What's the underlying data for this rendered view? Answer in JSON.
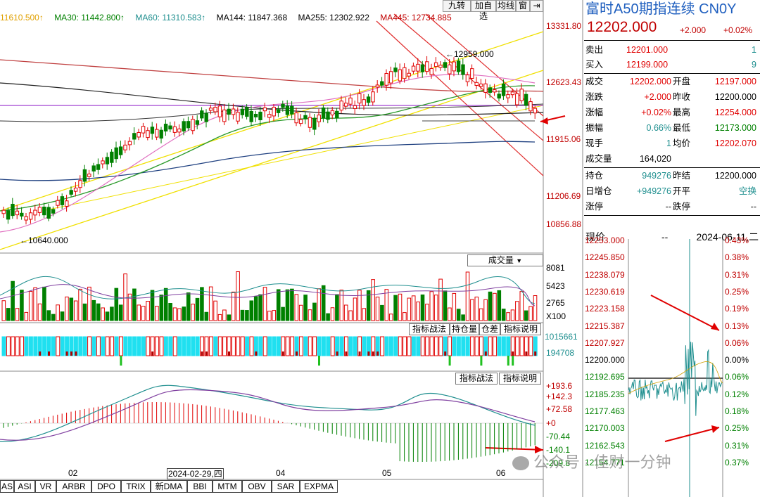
{
  "ma_legend": [
    {
      "text": "11610.500↑",
      "color": "#e0a000"
    },
    {
      "text": "MA30: 11442.800↑",
      "color": "#008000"
    },
    {
      "text": "MA60: 11310.583↑",
      "color": "#1f8f8f"
    },
    {
      "text": "MA144: 11847.368",
      "color": "#000000"
    },
    {
      "text": "MA255: 12302.922",
      "color": "#000000"
    },
    {
      "text": "MA445: 12734.885",
      "color": "#c00000"
    }
  ],
  "toolbar": [
    "九转",
    "加自选",
    "均线",
    "窗"
  ],
  "main_axis": {
    "labels": [
      "13331.80",
      "12623.43",
      "11915.06",
      "11206.69",
      "10856.88"
    ]
  },
  "annotations": {
    "high": "12959.000",
    "low": "10640.000"
  },
  "volume": {
    "dropdown": "成交量",
    "axis": [
      "8081",
      "5423",
      "2765",
      "X100"
    ]
  },
  "position_panel": {
    "buttons": [
      "指标战法",
      "持仓量",
      "仓差",
      "指标说明"
    ],
    "axis": [
      "1015661",
      "194708"
    ]
  },
  "macd": {
    "buttons": [
      "指标战法",
      "指标说明"
    ],
    "axis": [
      "+193.6",
      "+142.3",
      "+72.58",
      "+0",
      "-70.44",
      "-140.1",
      "-209.8"
    ]
  },
  "x_axis": [
    "02",
    "2024-02-29,四",
    "04",
    "05",
    "06"
  ],
  "tabs": [
    "AS",
    "ASI",
    "VR",
    "ARBR",
    "DPO",
    "TRIX",
    "新DMA",
    "BBI",
    "MTM",
    "OBV",
    "SAR",
    "EXPMA"
  ],
  "quote": {
    "title": "富时A50期指连续 CN0Y",
    "price": "12202.000",
    "change": "+2.000",
    "change_pct": "+0.02%",
    "ask_label": "卖出",
    "ask": "12201.000",
    "ask_vol": "1",
    "bid_label": "买入",
    "bid": "12199.000",
    "bid_vol": "9",
    "rows": [
      {
        "l1": "成交",
        "v1": "12202.000",
        "l2": "开盘",
        "v2": "12197.000"
      },
      {
        "l1": "涨跌",
        "v1": "+2.000",
        "l2": "昨收",
        "v2": "12200.000"
      },
      {
        "l1": "涨幅",
        "v1": "+0.02%",
        "l2": "最高",
        "v2": "12254.000"
      },
      {
        "l1": "振幅",
        "v1": "0.66%",
        "l2": "最低",
        "v2": "12173.000"
      },
      {
        "l1": "现手",
        "v1": "1",
        "l2": "均价",
        "v2": "12202.070"
      },
      {
        "l1": "成交量",
        "v1": "164,020",
        "l2": "",
        "v2": ""
      },
      {
        "l1": "持仓",
        "v1": "949276",
        "l2": "昨结",
        "v2": "12200.000"
      },
      {
        "l1": "日增仓",
        "v1": "+949276",
        "l2": "开平",
        "v2": "空换"
      },
      {
        "l1": "涨停",
        "v1": "--",
        "l2": "跌停",
        "v2": "--"
      }
    ],
    "now_label": "现价",
    "now_value": "--",
    "date": "2024-06-11,二"
  },
  "intraday": {
    "prices": [
      "12253.000",
      "12245.850",
      "12238.079",
      "12230.619",
      "12223.158",
      "12215.387",
      "12207.927",
      "12200.000",
      "12192.695",
      "12185.235",
      "12177.463",
      "12170.003",
      "12162.543",
      "12154.771"
    ],
    "pcts": [
      "0.43%",
      "0.38%",
      "0.31%",
      "0.25%",
      "0.19%",
      "0.13%",
      "0.06%",
      "0.00%",
      "0.06%",
      "0.12%",
      "0.18%",
      "0.25%",
      "0.31%",
      "0.37%"
    ]
  },
  "watermark": "公众号 · 佳财一分钟"
}
